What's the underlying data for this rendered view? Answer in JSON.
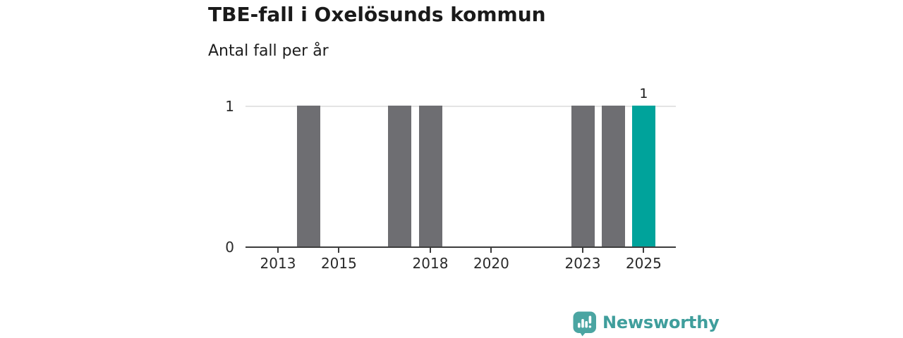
{
  "header": {
    "title": "TBE-fall i Oxelösunds kommun",
    "subtitle": "Antal fall per år"
  },
  "chart_data": {
    "type": "bar",
    "title": "TBE-fall i Oxelösunds kommun",
    "subtitle": "Antal fall per år",
    "xlabel": "",
    "ylabel": "Antal fall per år",
    "categories": [
      2012,
      2013,
      2014,
      2015,
      2016,
      2017,
      2018,
      2019,
      2020,
      2021,
      2022,
      2023,
      2024,
      2025
    ],
    "values": [
      0,
      0,
      1,
      0,
      0,
      1,
      1,
      0,
      0,
      0,
      0,
      1,
      1,
      1
    ],
    "ylim": [
      0,
      1
    ],
    "yticks": [
      0,
      1
    ],
    "xticks": [
      2013,
      2015,
      2018,
      2020,
      2023,
      2025
    ],
    "grid": "horizontal gridline at y=1 only",
    "legend": "none",
    "bar_color": "#6e6e72",
    "highlight_year": 2025,
    "highlight_color": "#00a39b",
    "annotations": [
      {
        "year": 2025,
        "text": "1"
      }
    ]
  },
  "branding": {
    "logo_text": "Newsworthy",
    "logo_text_color": "#3f9e9c",
    "logo_mark_color": "#4ba5a2",
    "logo_icon": "newsworthy-speech-bubble-bar-chart-icon"
  }
}
